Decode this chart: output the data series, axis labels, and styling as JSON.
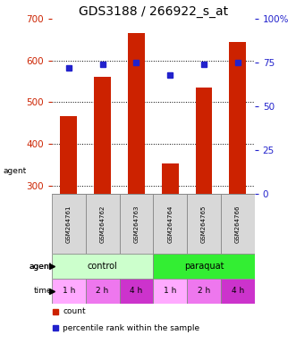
{
  "title": "GDS3188 / 266922_s_at",
  "categories": [
    "GSM264761",
    "GSM264762",
    "GSM264763",
    "GSM264764",
    "GSM264765",
    "GSM264766"
  ],
  "bar_values": [
    466,
    560,
    665,
    352,
    535,
    645
  ],
  "dot_values": [
    72,
    74,
    75,
    68,
    74,
    75
  ],
  "bar_color": "#cc2200",
  "dot_color": "#2222cc",
  "ylim_left": [
    280,
    700
  ],
  "ylim_right": [
    0,
    100
  ],
  "yticks_left": [
    300,
    400,
    500,
    600,
    700
  ],
  "yticks_right": [
    0,
    25,
    50,
    75,
    100
  ],
  "agent_labels": [
    "control",
    "paraquat"
  ],
  "control_color": "#ccffcc",
  "paraquat_color": "#33ee33",
  "time_colors": [
    "#ffaaff",
    "#ee77ee",
    "#cc33cc",
    "#ffaaff",
    "#ee77ee",
    "#cc33cc"
  ],
  "time_labels": [
    "1 h",
    "2 h",
    "4 h",
    "1 h",
    "2 h",
    "4 h"
  ],
  "legend_count_color": "#cc2200",
  "legend_dot_color": "#2222cc",
  "title_fontsize": 10,
  "left_tick_color": "#cc2200",
  "right_tick_color": "#2222cc",
  "bar_width": 0.5
}
